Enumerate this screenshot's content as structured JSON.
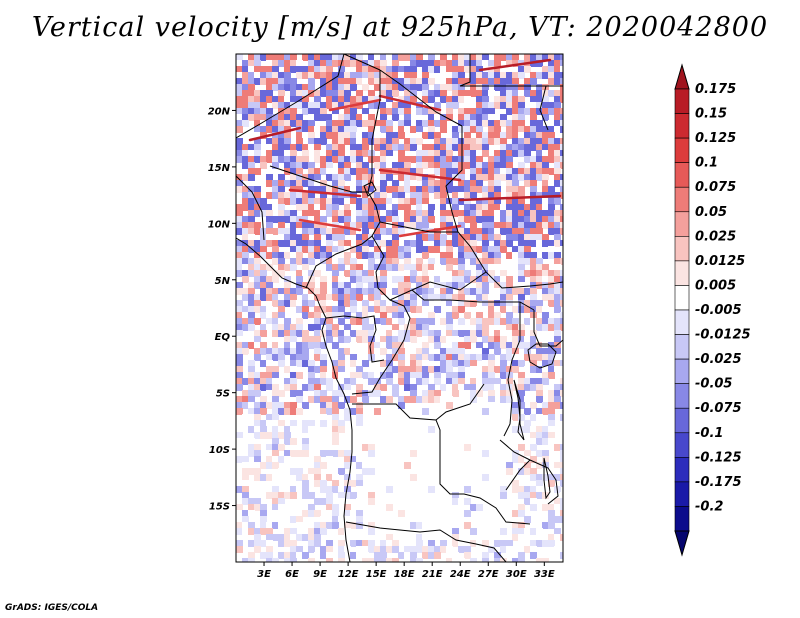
{
  "title": "Vertical velocity [m/s] at 925hPa, VT: 2020042800",
  "map": {
    "lon_range": [
      0,
      35
    ],
    "lat_range": [
      -20,
      25
    ],
    "lat_ticks": [
      "20N",
      "15N",
      "10N",
      "5N",
      "EQ",
      "5S",
      "10S",
      "15S"
    ],
    "lon_ticks": [
      "3E",
      "6E",
      "9E",
      "12E",
      "15E",
      "18E",
      "21E",
      "24E",
      "27E",
      "30E",
      "33E"
    ]
  },
  "colorbar": {
    "labels": [
      "0.175",
      "0.15",
      "0.125",
      "0.1",
      "0.075",
      "0.05",
      "0.025",
      "0.0125",
      "0.005",
      "-0.005",
      "-0.0125",
      "-0.025",
      "-0.05",
      "-0.075",
      "-0.1",
      "-0.125",
      "-0.175",
      "-0.2"
    ],
    "colors": [
      "#a0141e",
      "#b81c26",
      "#cc2a30",
      "#dc3c3c",
      "#e65a58",
      "#ee7c78",
      "#f4a09c",
      "#f8c4c0",
      "#fbe4e2",
      "#ffffff",
      "#e4e4fb",
      "#c8c8f6",
      "#a8a8f0",
      "#8888e6",
      "#6868da",
      "#4848cc",
      "#2c2cbc",
      "#1a1aa8",
      "#0c0c8c",
      "#06066e"
    ]
  },
  "credit": "GrADS: IGES/COLA"
}
